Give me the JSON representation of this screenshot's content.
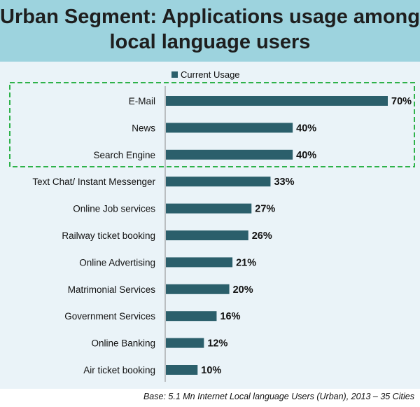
{
  "title_line1": "Urban Segment: Applications usage among",
  "title_line2": "local language users",
  "footnote": "Base: 5.1 Mn Internet  Local language Users (Urban), 2013 – 35 Cities",
  "colors": {
    "bar": "#2b5f6b",
    "header_bg": "#9dd3de",
    "plot_bg": "#eaf3f8",
    "highlight": "#2eb24a"
  },
  "chart_data": {
    "type": "bar",
    "orientation": "horizontal",
    "categories": [
      "E-Mail",
      "News",
      "Search Engine",
      "Text Chat/ Instant Messenger",
      "Online Job services",
      "Railway ticket booking",
      "Online Advertising",
      "Matrimonial Services",
      "Government Services",
      "Online Banking",
      "Air ticket booking"
    ],
    "series": [
      {
        "name": "Current Usage",
        "values": [
          70,
          40,
          40,
          33,
          27,
          26,
          21,
          20,
          16,
          12,
          10
        ]
      }
    ],
    "value_labels": [
      "70%",
      "40%",
      "40%",
      "33%",
      "27%",
      "26%",
      "21%",
      "20%",
      "16%",
      "12%",
      "10%"
    ],
    "xlim": [
      0,
      70
    ],
    "legend_position": "top",
    "highlighted_categories": [
      "E-Mail",
      "News",
      "Search Engine"
    ],
    "grid": false
  }
}
